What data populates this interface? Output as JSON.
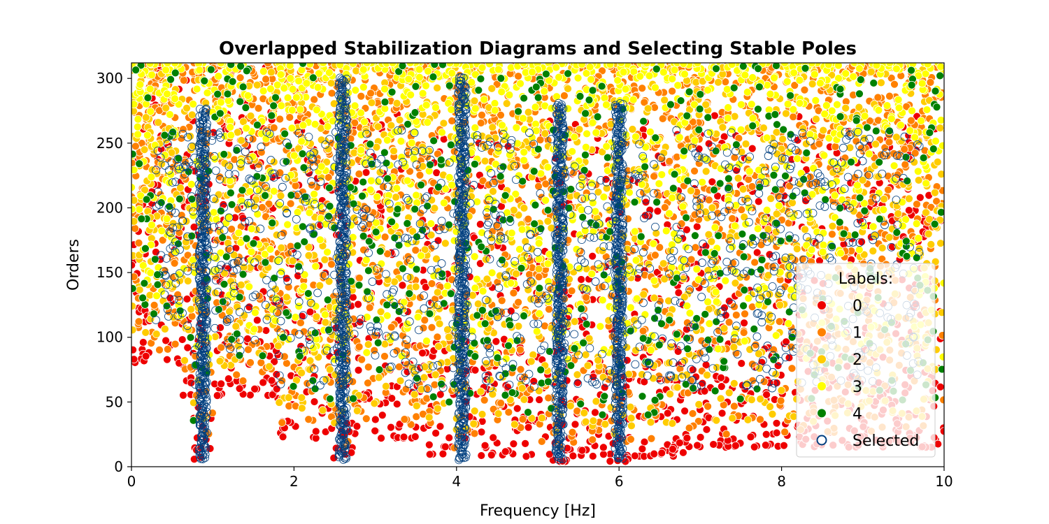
{
  "chart_data": {
    "type": "scatter",
    "title": "Overlapped Stabilization Diagrams and Selecting Stable Poles",
    "xlabel": "Frequency [Hz]",
    "ylabel": "Orders",
    "xlim": [
      0,
      10
    ],
    "ylim": [
      0,
      312
    ],
    "x_ticks": [
      0,
      2,
      4,
      6,
      8,
      10
    ],
    "y_ticks": [
      0,
      50,
      100,
      150,
      200,
      250,
      300
    ],
    "grid": false,
    "legend": {
      "title": "Labels:",
      "placement": "lower-right",
      "entries": [
        {
          "label": "0",
          "color": "#ee0000",
          "marker": "filled-circle"
        },
        {
          "label": "1",
          "color": "#ff8000",
          "marker": "filled-circle"
        },
        {
          "label": "2",
          "color": "#ffcc00",
          "marker": "filled-circle"
        },
        {
          "label": "3",
          "color": "#ffff00",
          "marker": "filled-circle"
        },
        {
          "label": "4",
          "color": "#008000",
          "marker": "filled-circle"
        },
        {
          "label": "Selected",
          "color": "#003f7f",
          "marker": "hollow-circle"
        }
      ]
    },
    "series": [
      {
        "name": "0",
        "color": "#ee0000",
        "point_count": 1400
      },
      {
        "name": "1",
        "color": "#ff8000",
        "point_count": 2000
      },
      {
        "name": "2",
        "color": "#ffcc00",
        "point_count": 1200
      },
      {
        "name": "3",
        "color": "#ffff00",
        "point_count": 1200
      },
      {
        "name": "4",
        "color": "#008000",
        "point_count": 500
      },
      {
        "name": "Selected",
        "color": "#003f7f",
        "stable_frequency_columns_hz": [
          0.88,
          2.6,
          4.07,
          5.27,
          6.0
        ],
        "order_range": [
          5,
          300
        ]
      }
    ]
  }
}
